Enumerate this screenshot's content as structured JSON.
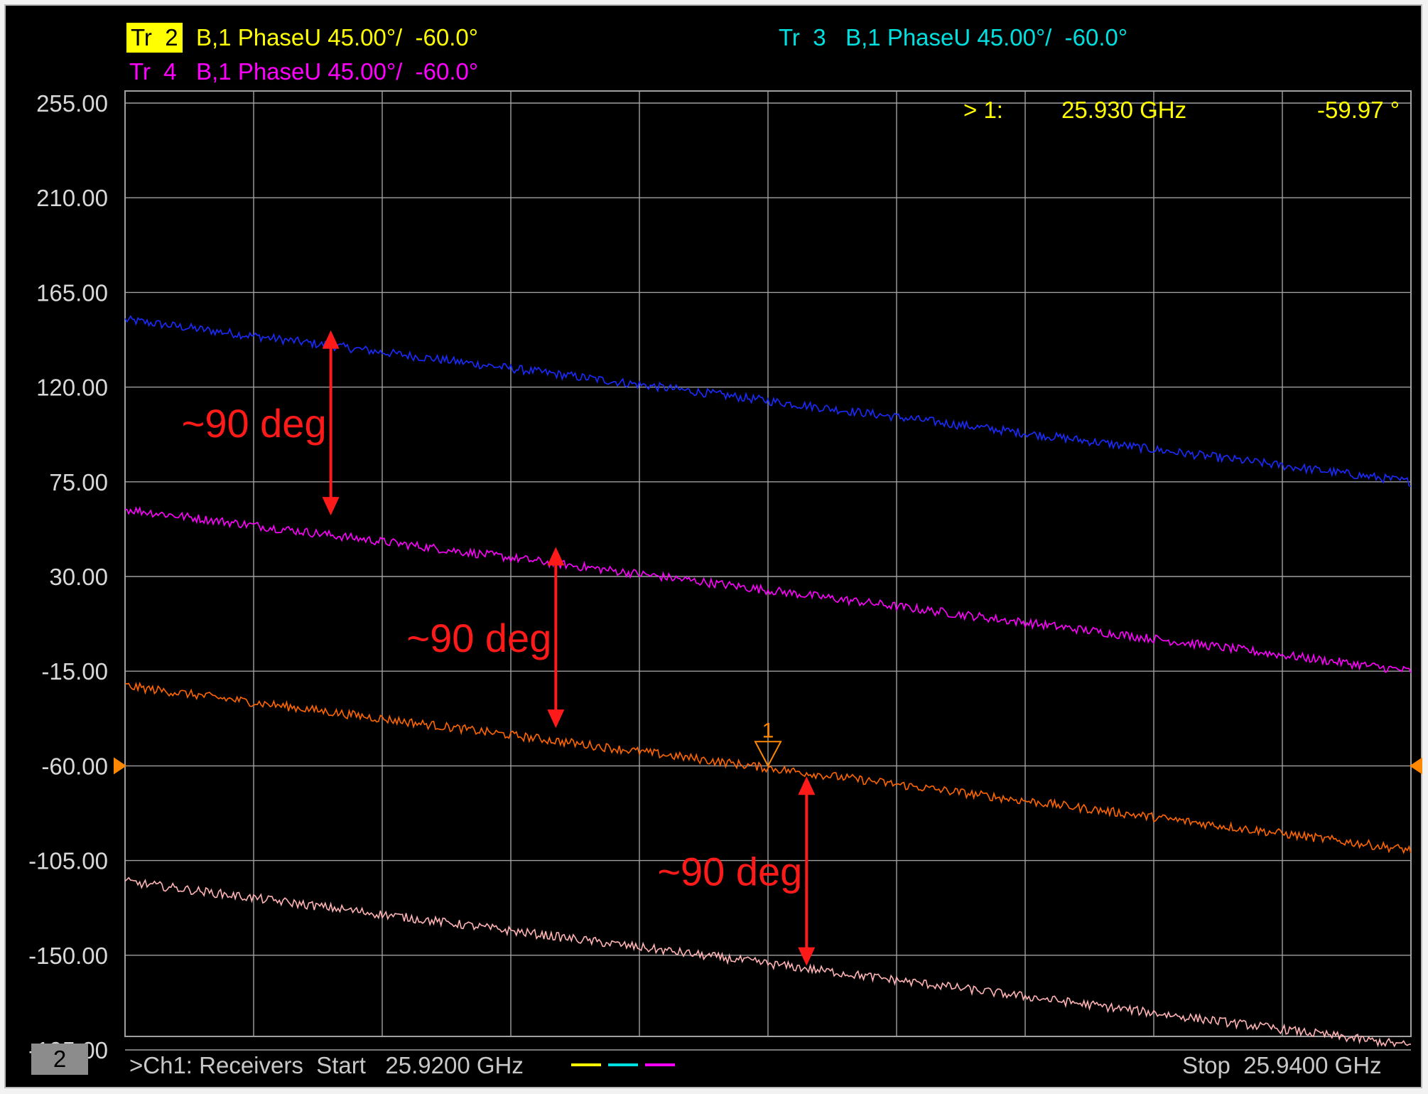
{
  "header": {
    "tr2_tag": "Tr  2",
    "tr2_desc": "B,1 PhaseU 45.00°/  -60.0°",
    "tr3_desc": "Tr  3   B,1 PhaseU 45.00°/  -60.0°",
    "tr4_desc": "Tr  4   B,1 PhaseU 45.00°/  -60.0°"
  },
  "marker_readout": {
    "label": "> 1:",
    "frequency": "25.930 GHz",
    "value": "-59.97 °"
  },
  "footer": {
    "channel_badge": "2",
    "channel_text": ">Ch1: Receivers  Start   25.9200 GHz",
    "stop_text": "Stop  25.9400 GHz"
  },
  "colors": {
    "background": "#000000",
    "grid": "#a0a0a0",
    "axis_text": "#d8d8d8",
    "tr2": "#ffff00",
    "tr3": "#00e0e0",
    "tr4": "#ff00ff",
    "annotation": "#ff1a1a",
    "marker": "#ff8800"
  },
  "chart_data": {
    "type": "line",
    "xlim": [
      25.92,
      25.94
    ],
    "ylim": [
      -240,
      255
    ],
    "yticks": [
      "255.00",
      "210.00",
      "165.00",
      "120.00",
      "75.00",
      "30.00",
      "-15.00",
      "-60.00",
      "-105.00",
      "-150.00",
      "-195.00"
    ],
    "grid": true,
    "series": [
      {
        "color": "#1a2bff",
        "x": [
          25.92,
          25.94
        ],
        "y": [
          152,
          75
        ]
      },
      {
        "color": "#ff00ff",
        "x": [
          25.92,
          25.94
        ],
        "y": [
          62,
          -15
        ]
      },
      {
        "color": "#ff6600",
        "x": [
          25.92,
          25.94
        ],
        "y": [
          -22,
          -100
        ]
      },
      {
        "color": "#ffb3b3",
        "x": [
          25.92,
          25.94
        ],
        "y": [
          -115,
          -193
        ]
      }
    ],
    "reference_level": -60,
    "marker": {
      "label": "1",
      "x": 25.93,
      "y": -59.97
    },
    "annotations": [
      {
        "text": "~90 deg",
        "x": 25.9232,
        "y_top": 147,
        "y_bottom": 59
      },
      {
        "text": "~90 deg",
        "x": 25.9267,
        "y_top": 44,
        "y_bottom": -42
      },
      {
        "text": "~90 deg",
        "x": 25.9306,
        "y_top": -65,
        "y_bottom": -155
      }
    ]
  }
}
